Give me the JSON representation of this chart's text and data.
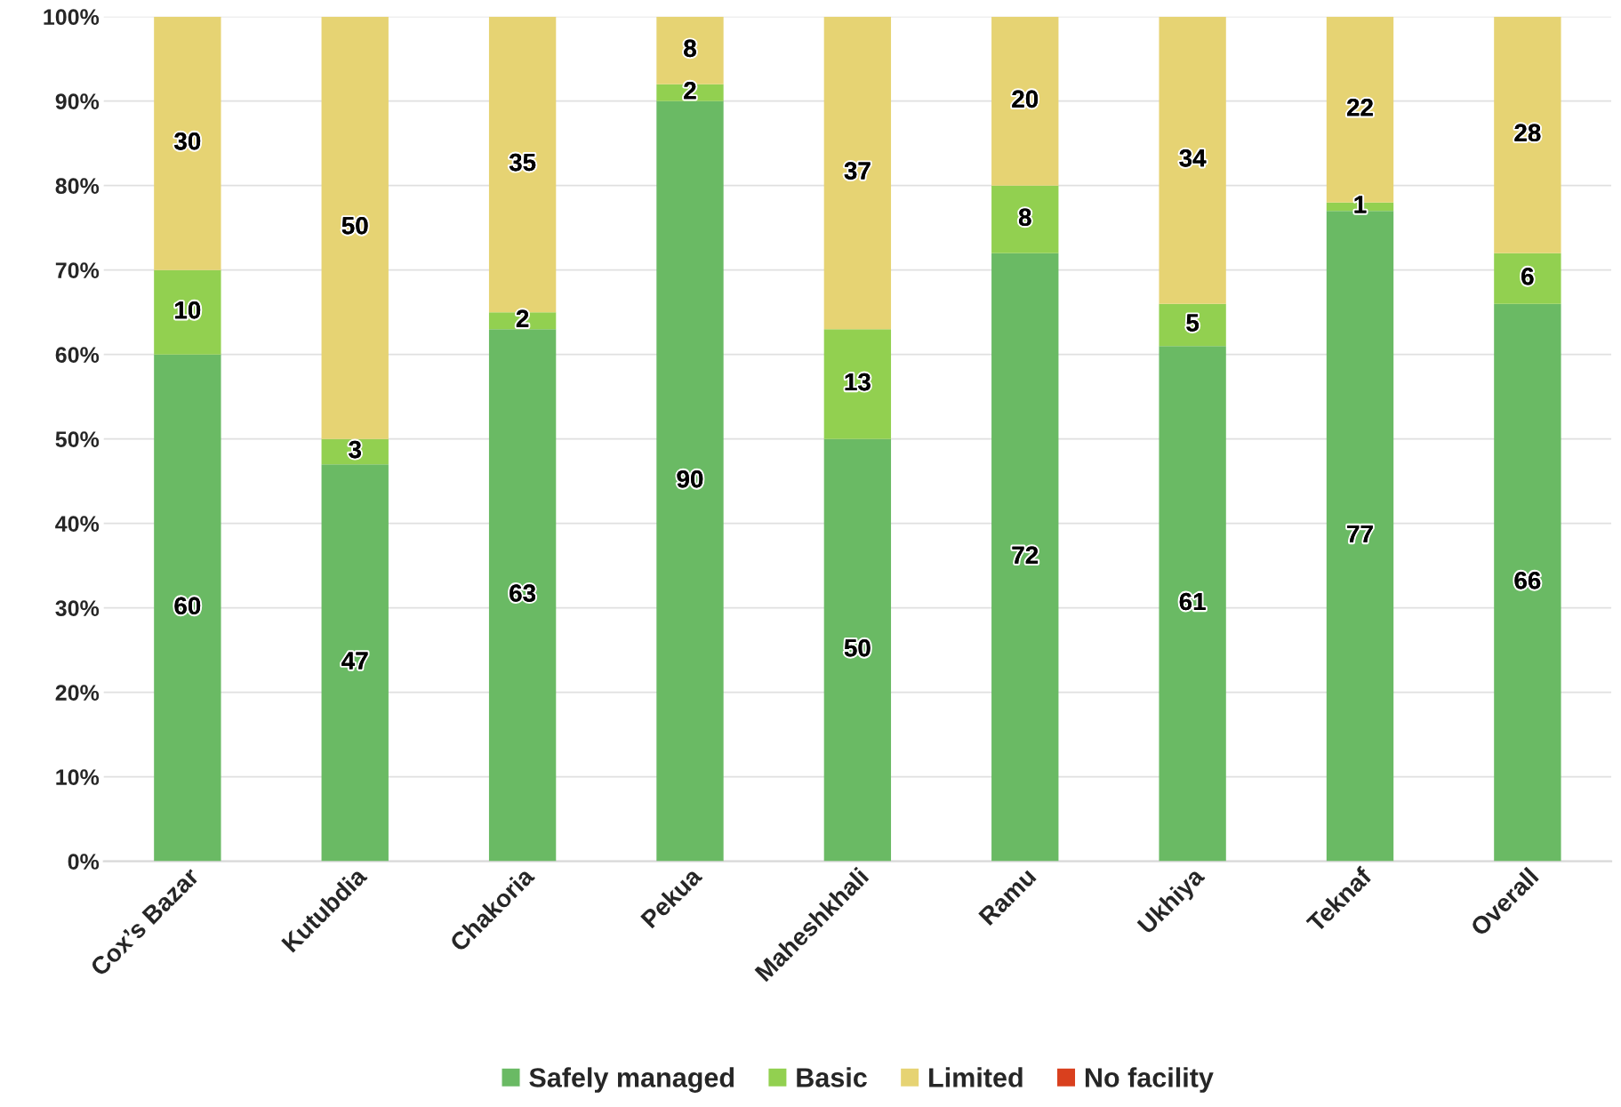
{
  "chart_data": {
    "type": "bar",
    "stacked": true,
    "categories": [
      "Cox’s Bazar",
      "Kutubdia",
      "Chakoria",
      "Pekua",
      "Maheshkhali",
      "Ramu",
      "Ukhiya",
      "Teknaf",
      "Overall"
    ],
    "series": [
      {
        "name": "Safely managed",
        "color": "#6aba64",
        "values": [
          60,
          47,
          63,
          90,
          50,
          72,
          61,
          77,
          66
        ],
        "value_labels": [
          "60",
          "47",
          "63",
          "90",
          "50",
          "72",
          "61",
          "77",
          "66"
        ]
      },
      {
        "name": "Basic",
        "color": "#92d050",
        "values": [
          10,
          3,
          2,
          2,
          13,
          8,
          5,
          1,
          6
        ],
        "value_labels": [
          "10",
          "3",
          "2",
          "2",
          "13",
          "8",
          "5",
          "1",
          "6"
        ]
      },
      {
        "name": "Limited",
        "color": "#e6d373",
        "values": [
          30,
          50,
          35,
          8,
          37,
          20,
          34,
          22,
          28
        ],
        "value_labels": [
          "30",
          "50",
          "35",
          "8",
          "37",
          "20",
          "34",
          "22",
          "28"
        ]
      },
      {
        "name": "No facility",
        "color": "#d9401e",
        "values": [
          0,
          0,
          0,
          0,
          0,
          0,
          0,
          0,
          0
        ],
        "value_labels": [
          null,
          null,
          null,
          null,
          null,
          null,
          null,
          null,
          null
        ]
      }
    ],
    "ylim": [
      0,
      100
    ],
    "yticks": [
      {
        "value": 0,
        "label": "0%"
      },
      {
        "value": 10,
        "label": "10%"
      },
      {
        "value": 20,
        "label": "20%"
      },
      {
        "value": 30,
        "label": "30%"
      },
      {
        "value": 40,
        "label": "40%"
      },
      {
        "value": 50,
        "label": "50%"
      },
      {
        "value": 60,
        "label": "60%"
      },
      {
        "value": 70,
        "label": "70%"
      },
      {
        "value": 80,
        "label": "80%"
      },
      {
        "value": 90,
        "label": "90%"
      },
      {
        "value": 100,
        "label": "100%"
      }
    ],
    "grid": "y",
    "legend": "bottom"
  }
}
